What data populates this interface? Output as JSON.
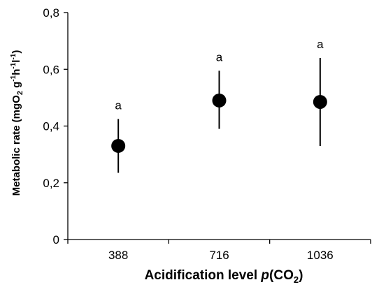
{
  "chart_data": {
    "type": "scatter",
    "title": "",
    "xlabel": "Acidification level p(CO2)",
    "xlabel_parts": {
      "prefix": "Acidification  level  ",
      "italic": "p",
      "open": "(CO",
      "sub": "2",
      "close": ")"
    },
    "ylabel": "Metabolic rate (mgO2 g-1h-1l-1)",
    "ylabel_parts": {
      "prefix": "Metabolic rate (mgO",
      "sub": "2",
      "mid1": " g",
      "sup1": "-1",
      "mid2": "h",
      "sup2": "-1",
      "mid3": "l",
      "sup3": "-1",
      "suffix": ")"
    },
    "categories": [
      "388",
      "716",
      "1036"
    ],
    "values": [
      0.33,
      0.49,
      0.485
    ],
    "error_low": [
      0.235,
      0.39,
      0.33
    ],
    "error_high": [
      0.425,
      0.595,
      0.64
    ],
    "labels": [
      "a",
      "a",
      "a"
    ],
    "ylim": [
      0,
      0.8
    ],
    "yticks": [
      "0",
      "0,2",
      "0,4",
      "0,6",
      "0,8"
    ],
    "ytick_values": [
      0,
      0.2,
      0.4,
      0.6,
      0.8
    ],
    "grid": false,
    "colors": {
      "marker": "#000000",
      "axis": "#000000"
    }
  }
}
